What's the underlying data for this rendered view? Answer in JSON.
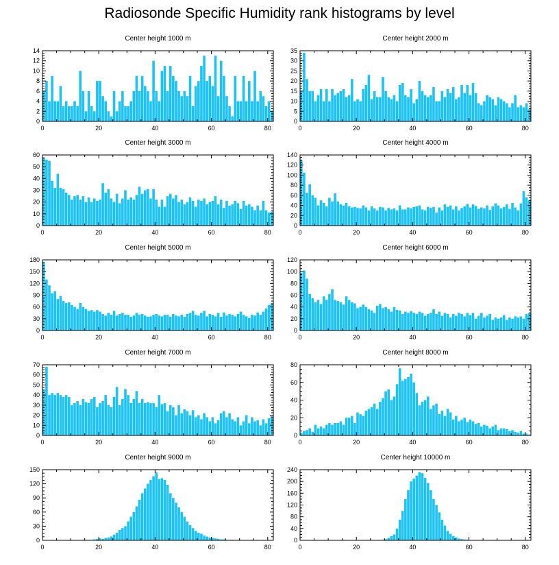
{
  "title": "Radiosonde Specific Humidity rank histograms by level",
  "bar_color": "#1ec3f5",
  "chart_data": [
    {
      "type": "bar",
      "title": "Center height 1000 m",
      "xlim": [
        0,
        82
      ],
      "ylim": [
        0,
        14
      ],
      "xticks": [
        0,
        20,
        40,
        60,
        80
      ],
      "yticks": [
        0,
        2,
        4,
        6,
        8,
        10,
        12,
        14
      ],
      "values": [
        6,
        8,
        4,
        9,
        4,
        4,
        7,
        3,
        4,
        3,
        3,
        4,
        3,
        10,
        6,
        2,
        6,
        3,
        2,
        8,
        8,
        5,
        4,
        2,
        1,
        6,
        2,
        4,
        6,
        3,
        3,
        4,
        6,
        9,
        6,
        9,
        7,
        6,
        4,
        12,
        6,
        4,
        10,
        11,
        6,
        11,
        9,
        8,
        6,
        5,
        6,
        5,
        9,
        3,
        7,
        8,
        11,
        13,
        8,
        9,
        7,
        13,
        5,
        12,
        9,
        5,
        3,
        1,
        9,
        4,
        4,
        9,
        4,
        8,
        4,
        10,
        4,
        6,
        5,
        3,
        4,
        2
      ]
    },
    {
      "type": "bar",
      "title": "Center height 2000 m",
      "xlim": [
        0,
        82
      ],
      "ylim": [
        0,
        35
      ],
      "xticks": [
        0,
        20,
        40,
        60,
        80
      ],
      "yticks": [
        0,
        5,
        10,
        15,
        20,
        25,
        30,
        35
      ],
      "values": [
        15,
        34,
        21,
        15,
        15,
        10,
        13,
        16,
        10,
        16,
        10,
        16,
        13,
        14,
        15,
        16,
        12,
        13,
        21,
        10,
        11,
        10,
        16,
        18,
        23,
        11,
        15,
        12,
        12,
        22,
        15,
        12,
        11,
        13,
        10,
        18,
        19,
        13,
        12,
        16,
        9,
        11,
        20,
        15,
        13,
        12,
        13,
        17,
        10,
        10,
        15,
        12,
        16,
        14,
        17,
        11,
        12,
        18,
        14,
        18,
        13,
        19,
        14,
        9,
        8,
        10,
        13,
        12,
        11,
        8,
        12,
        11,
        10,
        9,
        7,
        9,
        13,
        7,
        8,
        7,
        9,
        6
      ]
    },
    {
      "type": "bar",
      "title": "Center height 3000 m",
      "xlim": [
        0,
        82
      ],
      "ylim": [
        0,
        60
      ],
      "xticks": [
        0,
        20,
        40,
        60,
        80
      ],
      "yticks": [
        0,
        10,
        20,
        30,
        40,
        50,
        60
      ],
      "values": [
        58,
        56,
        55,
        38,
        32,
        44,
        32,
        31,
        28,
        26,
        22,
        25,
        26,
        22,
        25,
        20,
        24,
        20,
        23,
        21,
        22,
        36,
        28,
        31,
        23,
        20,
        27,
        19,
        23,
        30,
        22,
        24,
        22,
        26,
        33,
        27,
        30,
        31,
        23,
        31,
        22,
        16,
        22,
        16,
        25,
        27,
        23,
        26,
        20,
        22,
        18,
        20,
        24,
        21,
        16,
        22,
        21,
        23,
        18,
        20,
        21,
        25,
        18,
        22,
        15,
        21,
        17,
        18,
        21,
        19,
        14,
        21,
        17,
        18,
        16,
        13,
        17,
        13,
        21,
        13,
        11,
        12
      ]
    },
    {
      "type": "bar",
      "title": "Center height 4000 m",
      "xlim": [
        0,
        82
      ],
      "ylim": [
        0,
        140
      ],
      "xticks": [
        0,
        20,
        40,
        60,
        80
      ],
      "yticks": [
        0,
        20,
        40,
        60,
        80,
        100,
        120,
        140
      ],
      "values": [
        130,
        105,
        65,
        82,
        60,
        55,
        40,
        50,
        45,
        38,
        55,
        48,
        64,
        48,
        42,
        40,
        45,
        38,
        36,
        37,
        35,
        34,
        40,
        36,
        30,
        38,
        34,
        30,
        37,
        36,
        30,
        35,
        32,
        34,
        30,
        40,
        32,
        32,
        36,
        34,
        37,
        38,
        40,
        32,
        30,
        37,
        35,
        37,
        26,
        36,
        30,
        42,
        37,
        40,
        32,
        38,
        30,
        35,
        38,
        43,
        36,
        42,
        39,
        33,
        36,
        34,
        40,
        31,
        38,
        44,
        40,
        34,
        37,
        42,
        33,
        45,
        36,
        30,
        44,
        68,
        56,
        50
      ]
    },
    {
      "type": "bar",
      "title": "Center height 5000 m",
      "xlim": [
        0,
        82
      ],
      "ylim": [
        0,
        180
      ],
      "xticks": [
        0,
        20,
        40,
        60,
        80
      ],
      "yticks": [
        0,
        30,
        60,
        90,
        120,
        150,
        180
      ],
      "values": [
        175,
        130,
        115,
        95,
        100,
        80,
        88,
        75,
        70,
        72,
        65,
        60,
        55,
        70,
        60,
        55,
        50,
        52,
        48,
        52,
        48,
        42,
        38,
        45,
        40,
        50,
        38,
        42,
        45,
        40,
        40,
        35,
        38,
        45,
        40,
        42,
        38,
        35,
        36,
        40,
        42,
        38,
        36,
        40,
        40,
        35,
        42,
        38,
        36,
        40,
        35,
        42,
        45,
        50,
        40,
        38,
        45,
        50,
        36,
        42,
        40,
        36,
        45,
        35,
        46,
        38,
        42,
        40,
        36,
        42,
        48,
        40,
        36,
        32,
        40,
        38,
        46,
        40,
        48,
        56,
        65,
        70
      ]
    },
    {
      "type": "bar",
      "title": "Center height 6000 m",
      "xlim": [
        0,
        82
      ],
      "ylim": [
        0,
        120
      ],
      "xticks": [
        0,
        20,
        40,
        60,
        80
      ],
      "yticks": [
        0,
        20,
        40,
        60,
        80,
        100,
        120
      ],
      "values": [
        98,
        102,
        88,
        62,
        55,
        48,
        52,
        45,
        58,
        52,
        62,
        70,
        52,
        50,
        48,
        44,
        58,
        52,
        48,
        46,
        38,
        40,
        44,
        40,
        36,
        34,
        30,
        42,
        45,
        38,
        40,
        36,
        32,
        40,
        35,
        34,
        28,
        32,
        30,
        33,
        30,
        28,
        32,
        30,
        25,
        28,
        30,
        36,
        28,
        32,
        25,
        30,
        28,
        22,
        28,
        25,
        30,
        28,
        24,
        30,
        26,
        30,
        20,
        25,
        30,
        22,
        25,
        28,
        18,
        22,
        20,
        22,
        26,
        18,
        22,
        20,
        24,
        22,
        24,
        20,
        28,
        30
      ]
    },
    {
      "type": "bar",
      "title": "Center height 7000 m",
      "xlim": [
        0,
        82
      ],
      "ylim": [
        0,
        70
      ],
      "xticks": [
        0,
        20,
        40,
        60,
        80
      ],
      "yticks": [
        0,
        10,
        20,
        30,
        40,
        50,
        60,
        70
      ],
      "values": [
        45,
        68,
        40,
        42,
        40,
        42,
        40,
        38,
        40,
        38,
        30,
        32,
        34,
        30,
        36,
        33,
        32,
        36,
        38,
        28,
        32,
        34,
        40,
        30,
        28,
        38,
        48,
        30,
        36,
        46,
        40,
        32,
        36,
        44,
        32,
        36,
        32,
        33,
        32,
        32,
        28,
        40,
        31,
        32,
        24,
        30,
        28,
        20,
        30,
        22,
        26,
        24,
        20,
        25,
        18,
        20,
        16,
        22,
        18,
        14,
        18,
        12,
        15,
        22,
        24,
        18,
        22,
        16,
        14,
        18,
        10,
        14,
        20,
        12,
        18,
        14,
        15,
        10,
        16,
        12,
        17,
        19
      ]
    },
    {
      "type": "bar",
      "title": "Center height 8000 m",
      "xlim": [
        0,
        82
      ],
      "ylim": [
        0,
        80
      ],
      "xticks": [
        0,
        20,
        40,
        60,
        80
      ],
      "yticks": [
        0,
        20,
        40,
        60,
        80
      ],
      "values": [
        3,
        5,
        6,
        8,
        4,
        12,
        8,
        10,
        8,
        12,
        14,
        12,
        14,
        14,
        16,
        12,
        20,
        20,
        22,
        14,
        26,
        24,
        22,
        28,
        30,
        32,
        36,
        30,
        38,
        42,
        50,
        52,
        40,
        44,
        58,
        76,
        62,
        64,
        66,
        70,
        60,
        48,
        34,
        38,
        40,
        44,
        30,
        34,
        36,
        24,
        28,
        22,
        30,
        26,
        18,
        22,
        16,
        18,
        20,
        15,
        18,
        16,
        13,
        14,
        10,
        12,
        11,
        8,
        10,
        12,
        6,
        8,
        8,
        7,
        5,
        6,
        4,
        3,
        5,
        2,
        2,
        1
      ]
    },
    {
      "type": "bar",
      "title": "Center height 9000 m",
      "xlim": [
        0,
        82
      ],
      "ylim": [
        0,
        150
      ],
      "xticks": [
        0,
        20,
        40,
        60,
        80
      ],
      "yticks": [
        0,
        30,
        60,
        90,
        120,
        150
      ],
      "values": [
        0,
        0,
        0,
        0,
        0,
        0,
        0,
        0,
        0,
        0,
        0,
        0,
        0,
        0,
        1,
        1,
        1,
        1,
        2,
        3,
        4,
        3,
        5,
        6,
        8,
        12,
        16,
        22,
        26,
        30,
        40,
        50,
        60,
        72,
        86,
        100,
        110,
        120,
        128,
        136,
        144,
        130,
        132,
        128,
        118,
        100,
        90,
        80,
        70,
        60,
        50,
        40,
        32,
        26,
        20,
        16,
        14,
        10,
        8,
        6,
        5,
        4,
        3,
        2,
        2,
        1,
        1,
        1,
        0,
        1,
        0,
        0,
        0,
        0,
        1,
        0,
        0,
        0,
        0,
        0,
        0,
        0
      ]
    },
    {
      "type": "bar",
      "title": "Center height 10000 m",
      "xlim": [
        0,
        82
      ],
      "ylim": [
        0,
        240
      ],
      "xticks": [
        0,
        20,
        40,
        60,
        80
      ],
      "yticks": [
        0,
        40,
        80,
        120,
        160,
        200,
        240
      ],
      "values": [
        0,
        0,
        0,
        0,
        0,
        0,
        0,
        0,
        0,
        0,
        0,
        0,
        0,
        0,
        0,
        0,
        0,
        0,
        0,
        0,
        0,
        0,
        0,
        0,
        0,
        0,
        0,
        0,
        1,
        2,
        4,
        8,
        14,
        20,
        40,
        70,
        100,
        140,
        170,
        200,
        210,
        220,
        232,
        228,
        212,
        195,
        170,
        140,
        120,
        95,
        70,
        50,
        32,
        22,
        14,
        10,
        6,
        4,
        3,
        2,
        1,
        1,
        0,
        0,
        0,
        0,
        0,
        0,
        0,
        0,
        0,
        0,
        0,
        0,
        0,
        0,
        0,
        0,
        0,
        0,
        0,
        0
      ]
    }
  ]
}
